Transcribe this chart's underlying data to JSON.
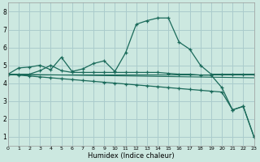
{
  "xlabel": "Humidex (Indice chaleur)",
  "xlim": [
    0,
    23
  ],
  "ylim": [
    0.5,
    8.5
  ],
  "xticks": [
    0,
    1,
    2,
    3,
    4,
    5,
    6,
    7,
    8,
    9,
    10,
    11,
    12,
    13,
    14,
    15,
    16,
    17,
    18,
    19,
    20,
    21,
    22,
    23
  ],
  "yticks": [
    1,
    2,
    3,
    4,
    5,
    6,
    7,
    8
  ],
  "bg_color": "#cce8e0",
  "grid_color": "#aacccc",
  "line_color": "#1a6a5a",
  "lines": [
    {
      "x": [
        0,
        1,
        2,
        3,
        4,
        5,
        6,
        7,
        8,
        9,
        10,
        11,
        12,
        13,
        14,
        15,
        16,
        17,
        18,
        19,
        20,
        21,
        22,
        23
      ],
      "y": [
        4.5,
        4.85,
        4.9,
        5.0,
        4.75,
        5.45,
        4.65,
        4.8,
        5.1,
        5.25,
        4.65,
        5.7,
        7.3,
        7.5,
        7.65,
        7.65,
        6.3,
        5.9,
        5.0,
        4.5,
        4.5,
        4.5,
        4.5,
        4.5
      ],
      "marker": true
    },
    {
      "x": [
        0,
        1,
        2,
        3,
        4,
        5,
        6,
        7,
        8,
        9,
        10,
        11,
        12,
        13,
        14,
        15,
        16,
        17,
        18,
        19,
        20,
        21,
        22,
        23
      ],
      "y": [
        4.5,
        4.45,
        4.4,
        4.35,
        4.3,
        4.25,
        4.2,
        4.15,
        4.1,
        4.05,
        4.0,
        3.95,
        3.9,
        3.85,
        3.8,
        3.75,
        3.7,
        3.65,
        3.6,
        3.55,
        3.5,
        2.5,
        2.7,
        1.0
      ],
      "marker": true
    },
    {
      "x": [
        0,
        1,
        2,
        3,
        4,
        5,
        6,
        7,
        8,
        9,
        10,
        11,
        12,
        13,
        14,
        15,
        16,
        17,
        18,
        19,
        20,
        21,
        22,
        23
      ],
      "y": [
        4.5,
        4.5,
        4.5,
        4.7,
        5.0,
        4.7,
        4.6,
        4.6,
        4.6,
        4.6,
        4.6,
        4.6,
        4.6,
        4.6,
        4.6,
        4.55,
        4.5,
        4.5,
        4.45,
        4.45,
        3.75,
        2.5,
        2.7,
        1.0
      ],
      "marker": true
    },
    {
      "x": [
        0,
        23
      ],
      "y": [
        4.5,
        4.5
      ],
      "marker": false
    },
    {
      "x": [
        0,
        23
      ],
      "y": [
        4.5,
        4.3
      ],
      "marker": false
    }
  ]
}
